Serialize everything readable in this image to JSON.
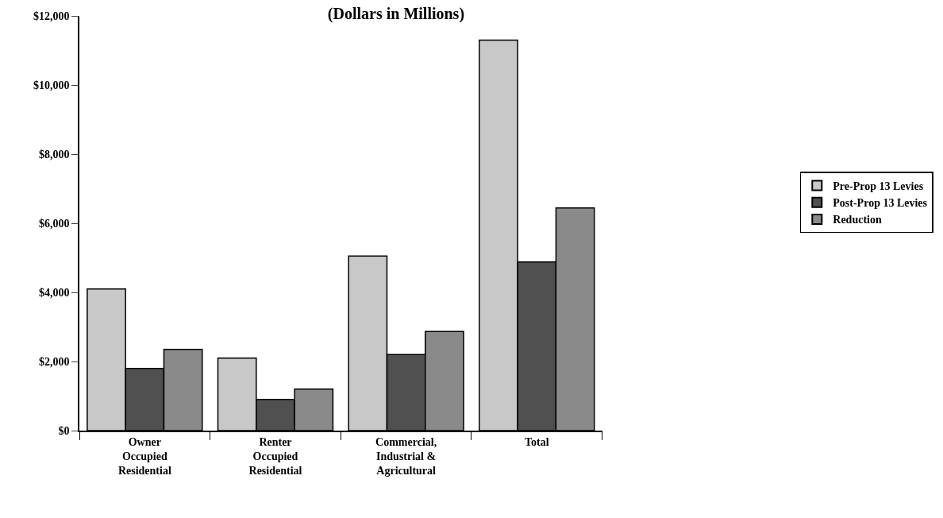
{
  "chart_data": {
    "type": "bar",
    "title": "(Dollars in Millions)",
    "categories": [
      "Owner\nOccupied\nResidential",
      "Renter\nOccupied\nResidential",
      "Commercial,\nIndustrial &\nAgricultural",
      "Total"
    ],
    "series": [
      {
        "name": "Pre-Prop 13 Levies",
        "color": "#c8c8c8",
        "values": [
          4100,
          2100,
          5050,
          11300
        ]
      },
      {
        "name": "Post-Prop 13 Levies",
        "color": "#505050",
        "values": [
          1800,
          900,
          2200,
          4880
        ]
      },
      {
        "name": "Reduction",
        "color": "#8a8a8a",
        "values": [
          2350,
          1200,
          2870,
          6440
        ]
      }
    ],
    "ylim": [
      0,
      12000
    ],
    "yticks": [
      {
        "value": 0,
        "label": "$0"
      },
      {
        "value": 2000,
        "label": "$2,000"
      },
      {
        "value": 4000,
        "label": "$4,000"
      },
      {
        "value": 6000,
        "label": "$6,000"
      },
      {
        "value": 8000,
        "label": "$8,000"
      },
      {
        "value": 10000,
        "label": "$10,000"
      },
      {
        "value": 12000,
        "label": "$12,000"
      }
    ],
    "grid": false,
    "legend": "right"
  }
}
